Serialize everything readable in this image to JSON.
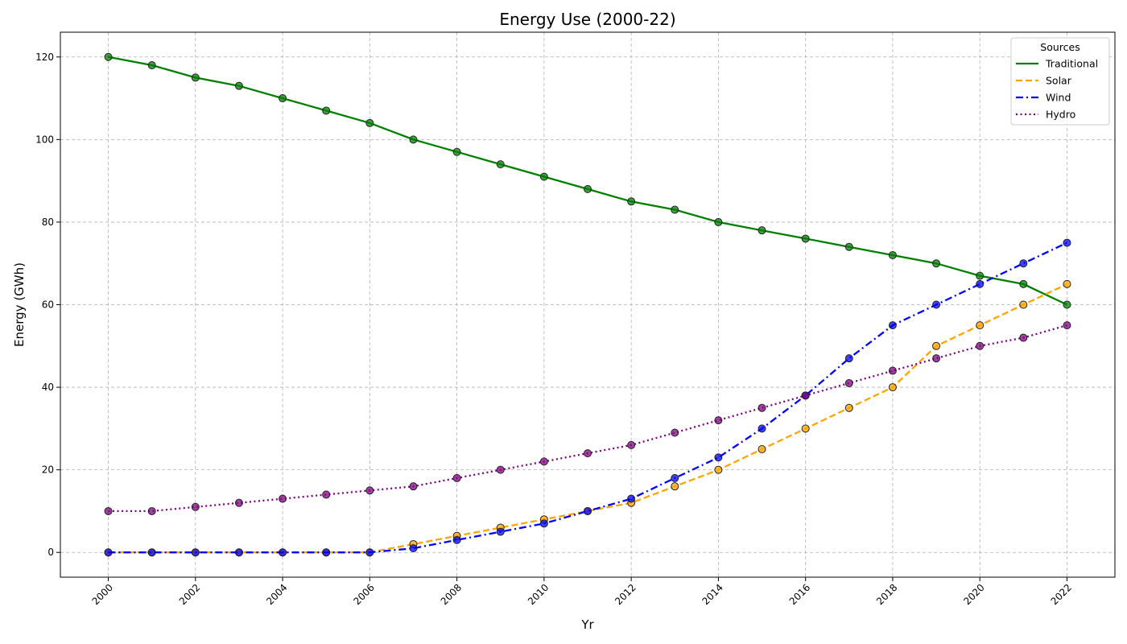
{
  "chart_data": {
    "type": "line",
    "title": "Energy Use (2000-22)",
    "xlabel": "Yr",
    "ylabel": "Energy (GWh)",
    "x": [
      2000,
      2001,
      2002,
      2003,
      2004,
      2005,
      2006,
      2007,
      2008,
      2009,
      2010,
      2011,
      2012,
      2013,
      2014,
      2015,
      2016,
      2017,
      2018,
      2019,
      2020,
      2021,
      2022
    ],
    "xticks": [
      "2000",
      "2002",
      "2004",
      "2006",
      "2008",
      "2010",
      "2012",
      "2014",
      "2016",
      "2018",
      "2020",
      "2022"
    ],
    "xlim": [
      1998.9,
      2023.1
    ],
    "yticks": [
      "0",
      "20",
      "40",
      "60",
      "80",
      "100",
      "120"
    ],
    "ylim": [
      -6,
      126
    ],
    "grid": true,
    "legend": {
      "title": "Sources",
      "placement": "top-right"
    },
    "series": [
      {
        "name": "Traditional",
        "color": "#008000",
        "line_style": "solid",
        "values": [
          120,
          118,
          115,
          113,
          110,
          107,
          104,
          100,
          97,
          94,
          91,
          88,
          85,
          83,
          80,
          78,
          76,
          74,
          72,
          70,
          67,
          65,
          60
        ]
      },
      {
        "name": "Solar",
        "color": "#FFA500",
        "line_style": "dashed",
        "values": [
          0,
          0,
          0,
          0,
          0,
          0,
          0,
          2,
          4,
          6,
          8,
          10,
          12,
          16,
          20,
          25,
          30,
          35,
          40,
          50,
          55,
          60,
          65
        ]
      },
      {
        "name": "Wind",
        "color": "#0000FF",
        "line_style": "dashdot",
        "values": [
          0,
          0,
          0,
          0,
          0,
          0,
          0,
          1,
          3,
          5,
          7,
          10,
          13,
          18,
          23,
          30,
          38,
          47,
          55,
          60,
          65,
          70,
          75
        ]
      },
      {
        "name": "Hydro",
        "color": "#800080",
        "line_style": "dotted",
        "values": [
          10,
          10,
          11,
          12,
          13,
          14,
          15,
          16,
          18,
          20,
          22,
          24,
          26,
          29,
          32,
          35,
          38,
          41,
          44,
          47,
          50,
          52,
          55
        ]
      }
    ]
  }
}
